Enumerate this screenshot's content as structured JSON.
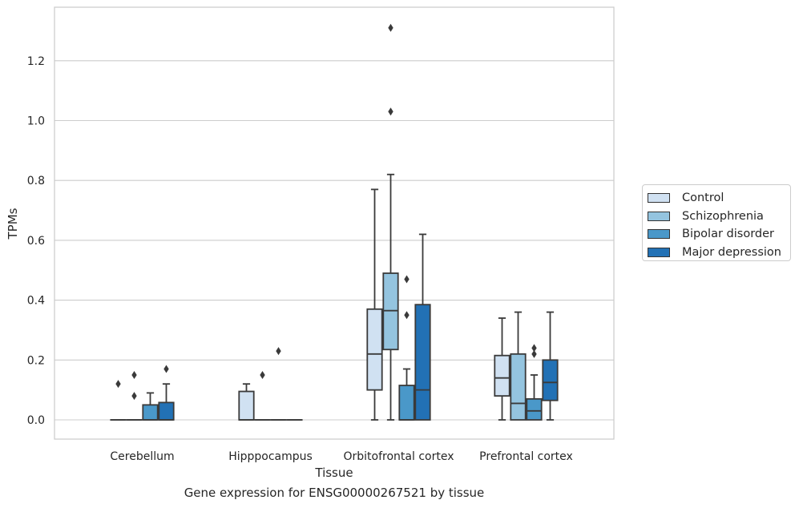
{
  "chart_data": {
    "type": "box",
    "xlabel": "Tissue",
    "ylabel": "TPMs",
    "caption": "Gene expression for ENSG00000267521 by tissue",
    "categories": [
      "Cerebellum",
      "Hipppocampus",
      "Orbitofrontal cortex",
      "Prefrontal cortex"
    ],
    "ylim": [
      -0.065,
      1.39
    ],
    "yticks": [
      "0.0",
      "0.2",
      "0.4",
      "0.6",
      "0.8",
      "1.0",
      "1.2"
    ],
    "grid": "horizontal",
    "legend_position": "right",
    "series": [
      {
        "name": "Control",
        "color": "#d0e1f2",
        "boxes": [
          {
            "category": "Cerebellum",
            "min": 0,
            "q1": 0,
            "median": 0,
            "q3": 0,
            "max": 0,
            "outliers": [
              0.12
            ]
          },
          {
            "category": "Hipppocampus",
            "min": 0,
            "q1": 0,
            "median": 0,
            "q3": 0.095,
            "max": 0.12,
            "outliers": []
          },
          {
            "category": "Orbitofrontal cortex",
            "min": 0,
            "q1": 0.1,
            "median": 0.22,
            "q3": 0.37,
            "max": 0.77,
            "outliers": []
          },
          {
            "category": "Prefrontal cortex",
            "min": 0,
            "q1": 0.08,
            "median": 0.14,
            "q3": 0.215,
            "max": 0.34,
            "outliers": []
          }
        ]
      },
      {
        "name": "Schizophrenia",
        "color": "#94c4df",
        "boxes": [
          {
            "category": "Cerebellum",
            "min": 0,
            "q1": 0,
            "median": 0,
            "q3": 0,
            "max": 0,
            "outliers": [
              0.08,
              0.15
            ]
          },
          {
            "category": "Hipppocampus",
            "min": 0,
            "q1": 0,
            "median": 0,
            "q3": 0,
            "max": 0,
            "outliers": [
              0.15
            ]
          },
          {
            "category": "Orbitofrontal cortex",
            "min": 0,
            "q1": 0.235,
            "median": 0.365,
            "q3": 0.49,
            "max": 0.82,
            "outliers": [
              1.03,
              1.31
            ]
          },
          {
            "category": "Prefrontal cortex",
            "min": 0,
            "q1": 0,
            "median": 0.055,
            "q3": 0.22,
            "max": 0.36,
            "outliers": []
          }
        ]
      },
      {
        "name": "Bipolar disorder",
        "color": "#4a98c9",
        "boxes": [
          {
            "category": "Cerebellum",
            "min": 0,
            "q1": 0,
            "median": 0,
            "q3": 0.05,
            "max": 0.09,
            "outliers": []
          },
          {
            "category": "Hipppocampus",
            "min": 0,
            "q1": 0,
            "median": 0,
            "q3": 0,
            "max": 0,
            "outliers": [
              0.23
            ]
          },
          {
            "category": "Orbitofrontal cortex",
            "min": 0,
            "q1": 0,
            "median": 0,
            "q3": 0.115,
            "max": 0.17,
            "outliers": [
              0.35,
              0.47
            ]
          },
          {
            "category": "Prefrontal cortex",
            "min": 0,
            "q1": 0,
            "median": 0.03,
            "q3": 0.07,
            "max": 0.15,
            "outliers": [
              0.22,
              0.24
            ]
          }
        ]
      },
      {
        "name": "Major depression",
        "color": "#2271b5",
        "boxes": [
          {
            "category": "Cerebellum",
            "min": 0,
            "q1": 0,
            "median": 0,
            "q3": 0.058,
            "max": 0.12,
            "outliers": [
              0.17
            ]
          },
          {
            "category": "Hipppocampus",
            "min": 0,
            "q1": 0,
            "median": 0,
            "q3": 0,
            "max": 0,
            "outliers": []
          },
          {
            "category": "Orbitofrontal cortex",
            "min": 0,
            "q1": 0,
            "median": 0.1,
            "q3": 0.385,
            "max": 0.62,
            "outliers": []
          },
          {
            "category": "Prefrontal cortex",
            "min": 0,
            "q1": 0.065,
            "median": 0.125,
            "q3": 0.2,
            "max": 0.36,
            "outliers": []
          }
        ]
      }
    ]
  }
}
